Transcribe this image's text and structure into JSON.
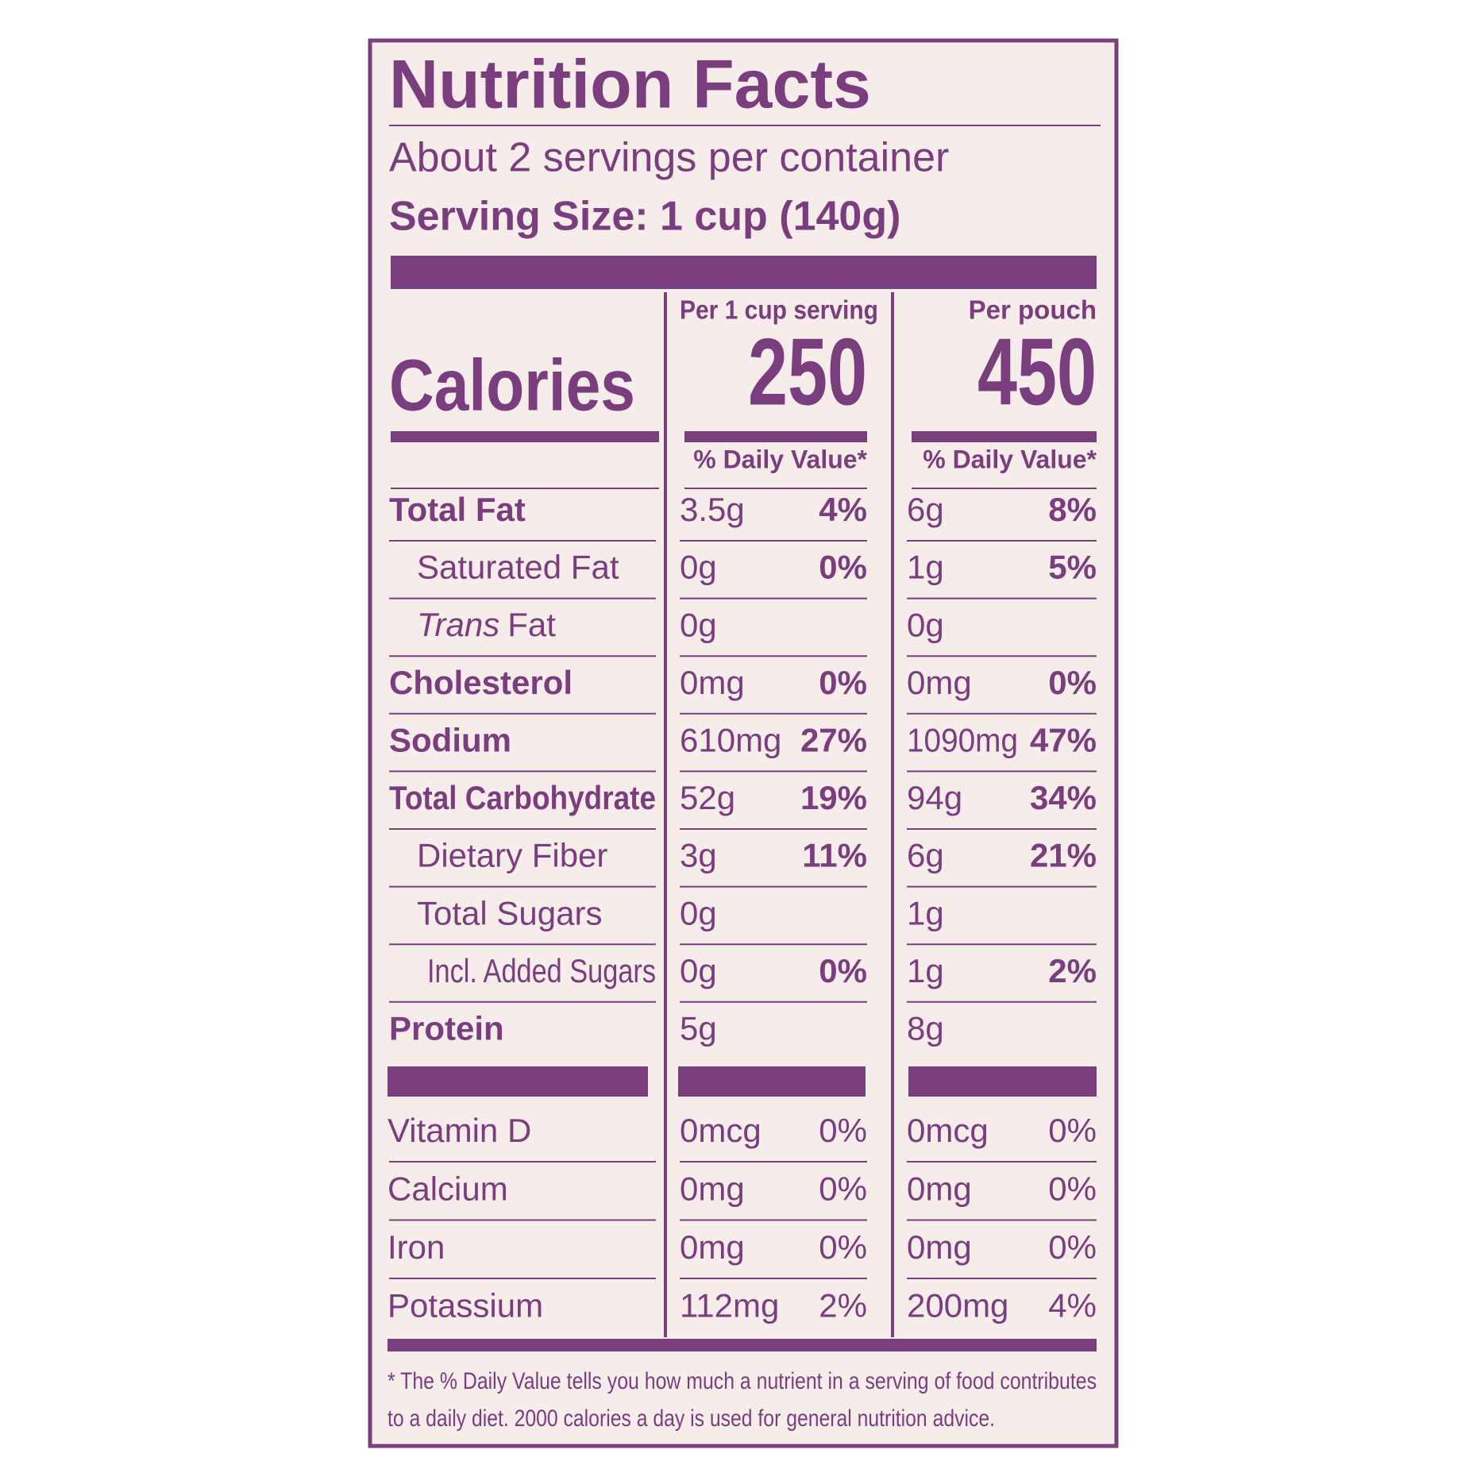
{
  "title": "Nutrition Facts",
  "servings": "About 2 servings per container",
  "serving_size": "Serving Size: 1 cup (140g)",
  "calories_label": "Calories",
  "columns": [
    {
      "header": "Per 1 cup serving",
      "calories": "250",
      "dv_header": "% Daily Value*"
    },
    {
      "header": "Per pouch",
      "calories": "450",
      "dv_header": "% Daily Value*"
    }
  ],
  "nutrients": [
    {
      "name": "Total Fat",
      "bold": true,
      "indent": 0,
      "values": [
        {
          "amount": "3.5g",
          "dv": "4%"
        },
        {
          "amount": "6g",
          "dv": "8%"
        }
      ]
    },
    {
      "name": "Saturated Fat",
      "bold": false,
      "indent": 1,
      "values": [
        {
          "amount": "0g",
          "dv": "0%"
        },
        {
          "amount": "1g",
          "dv": "5%"
        }
      ]
    },
    {
      "name": [
        "Trans",
        "Fat"
      ],
      "bold": false,
      "indent": 1,
      "values": [
        {
          "amount": "0g",
          "dv": null
        },
        {
          "amount": "0g",
          "dv": null
        }
      ]
    },
    {
      "name": "Cholesterol",
      "bold": true,
      "indent": 0,
      "values": [
        {
          "amount": "0mg",
          "dv": "0%"
        },
        {
          "amount": "0mg",
          "dv": "0%"
        }
      ]
    },
    {
      "name": "Sodium",
      "bold": true,
      "indent": 0,
      "values": [
        {
          "amount": "610mg",
          "dv": "27%"
        },
        {
          "amount": "1090mg",
          "dv": "47%"
        }
      ]
    },
    {
      "name": "Total Carbohydrate",
      "bold": true,
      "indent": 0,
      "values": [
        {
          "amount": "52g",
          "dv": "19%"
        },
        {
          "amount": "94g",
          "dv": "34%"
        }
      ]
    },
    {
      "name": "Dietary Fiber",
      "bold": false,
      "indent": 1,
      "values": [
        {
          "amount": "3g",
          "dv": "11%"
        },
        {
          "amount": "6g",
          "dv": "21%"
        }
      ]
    },
    {
      "name": "Total Sugars",
      "bold": false,
      "indent": 1,
      "values": [
        {
          "amount": "0g",
          "dv": null
        },
        {
          "amount": "1g",
          "dv": null
        }
      ]
    },
    {
      "name": "Incl. Added Sugars",
      "bold": false,
      "indent": 2,
      "values": [
        {
          "amount": "0g",
          "dv": "0%"
        },
        {
          "amount": "1g",
          "dv": "2%"
        }
      ]
    },
    {
      "name": "Protein",
      "bold": true,
      "indent": 0,
      "values": [
        {
          "amount": "5g",
          "dv": null
        },
        {
          "amount": "8g",
          "dv": null
        }
      ]
    }
  ],
  "vitamins": [
    {
      "name": "Vitamin D",
      "values": [
        {
          "amount": "0mcg",
          "dv": "0%"
        },
        {
          "amount": "0mcg",
          "dv": "0%"
        }
      ]
    },
    {
      "name": "Calcium",
      "values": [
        {
          "amount": "0mg",
          "dv": "0%"
        },
        {
          "amount": "0mg",
          "dv": "0%"
        }
      ]
    },
    {
      "name": "Iron",
      "values": [
        {
          "amount": "0mg",
          "dv": "0%"
        },
        {
          "amount": "0mg",
          "dv": "0%"
        }
      ]
    },
    {
      "name": "Potassium",
      "values": [
        {
          "amount": "112mg",
          "dv": "2%"
        },
        {
          "amount": "200mg",
          "dv": "4%"
        }
      ]
    }
  ],
  "footnote": [
    "* The % Daily Value tells you how much a nutrient in a serving of food contributes",
    "to a daily diet. 2000 calories a day is used for general nutrition advice."
  ]
}
